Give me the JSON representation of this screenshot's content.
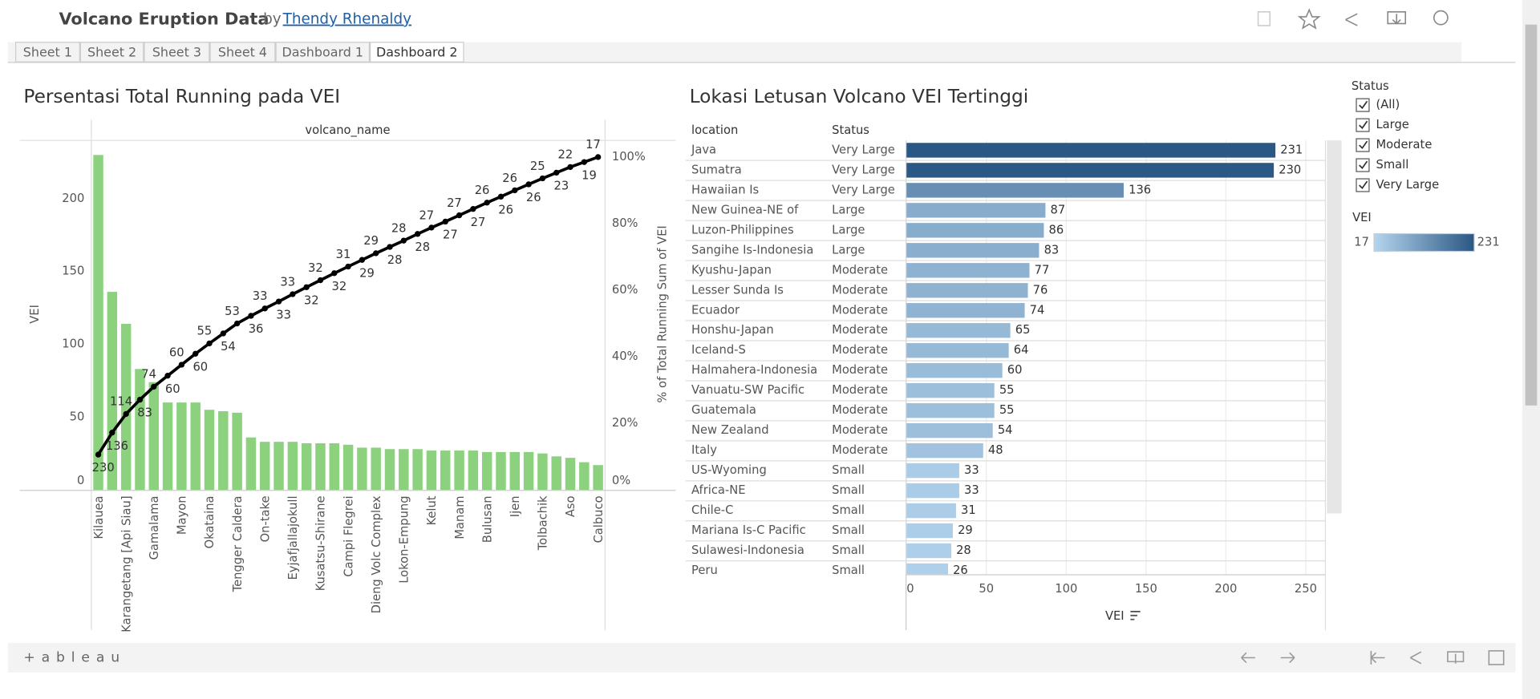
{
  "header": {
    "title": "Volcano Eruption Data",
    "by": "by",
    "author": "Thendy Rhenaldy"
  },
  "tabs": [
    "Sheet 1",
    "Sheet 2",
    "Sheet 3",
    "Sheet 4",
    "Dashboard 1",
    "Dashboard 2"
  ],
  "filter": {
    "title": "Status",
    "options": [
      "(All)",
      "Large",
      "Moderate",
      "Small",
      "Very Large"
    ]
  },
  "footer": {
    "logo": "+ a b l e a u"
  },
  "chart_data": [
    {
      "type": "pareto",
      "title": "Persentasi Total Running pada VEI",
      "column_header": "volcano_name",
      "y_label": "VEI",
      "y2_label": "% of Total Running Sum of VEI",
      "categories": [
        "Kilauea",
        null,
        "Karangetang [Api Siau]",
        null,
        "Gamalama",
        null,
        "Mayon",
        null,
        "Okataina",
        null,
        "Tengger Caldera",
        null,
        "On-take",
        null,
        "Eyjafjallajokull",
        null,
        "Kusatsu-Shirane",
        null,
        "Campi Flegrei",
        null,
        "Dieng Volc Complex",
        null,
        "Lokon-Empung",
        null,
        "Kelut",
        null,
        "Manam",
        null,
        "Bulusan",
        null,
        "Ijen",
        null,
        "Tolbachik",
        null,
        "Aso",
        null,
        "Calbuco"
      ],
      "series": [
        {
          "type": "bar",
          "color": "#8cd17d",
          "values": [
            230,
            136,
            114,
            83,
            74,
            60,
            60,
            60,
            55,
            54,
            53,
            36,
            33,
            33,
            33,
            32,
            32,
            32,
            31,
            29,
            29,
            28,
            28,
            28,
            27,
            27,
            27,
            27,
            26,
            26,
            26,
            26,
            25,
            23,
            22,
            19,
            17
          ]
        },
        {
          "type": "line",
          "axis": "y2",
          "color": "#000000",
          "values": [
            10.6,
            17.2,
            22.8,
            27.1,
            31.0,
            34.3,
            37.6,
            40.9,
            44.0,
            47.0,
            50.0,
            52.3,
            54.5,
            56.6,
            58.8,
            60.9,
            63.0,
            65.1,
            67.1,
            69.1,
            71.1,
            73.0,
            74.9,
            76.9,
            78.8,
            80.6,
            82.5,
            84.4,
            86.3,
            88.1,
            90.0,
            91.8,
            93.6,
            95.3,
            97.0,
            98.5,
            100
          ]
        }
      ],
      "ylim": [
        0,
        240
      ],
      "yticks": [
        0,
        50,
        100,
        150,
        200
      ],
      "y2lim": [
        0,
        105
      ],
      "y2ticks": [
        {
          "value": 0,
          "label": "0%"
        },
        {
          "value": 20,
          "label": "20%"
        },
        {
          "value": 40,
          "label": "40%"
        },
        {
          "value": 60,
          "label": "60%"
        },
        {
          "value": 80,
          "label": "80%"
        },
        {
          "value": 100,
          "label": "100%"
        }
      ],
      "grid": false
    },
    {
      "type": "hbar",
      "title": "Lokasi Letusan Volcano VEI Tertinggi",
      "columns": [
        "location",
        "Status"
      ],
      "categories": [
        "Java",
        "Sumatra",
        "Hawaiian Is",
        "New Guinea-NE of",
        "Luzon-Philippines",
        "Sangihe Is-Indonesia",
        "Kyushu-Japan",
        "Lesser Sunda Is",
        "Ecuador",
        "Honshu-Japan",
        "Iceland-S",
        "Halmahera-Indonesia",
        "Vanuatu-SW Pacific",
        "Guatemala",
        "New Zealand",
        "Italy",
        "US-Wyoming",
        "Africa-NE",
        "Chile-C",
        "Mariana Is-C Pacific",
        "Sulawesi-Indonesia",
        "Peru"
      ],
      "status": [
        "Very Large",
        "Very Large",
        "Very Large",
        "Large",
        "Large",
        "Large",
        "Moderate",
        "Moderate",
        "Moderate",
        "Moderate",
        "Moderate",
        "Moderate",
        "Moderate",
        "Moderate",
        "Moderate",
        "Moderate",
        "Small",
        "Small",
        "Small",
        "Small",
        "Small",
        "Small"
      ],
      "values": [
        231,
        230,
        136,
        87,
        86,
        83,
        77,
        76,
        74,
        65,
        64,
        60,
        55,
        55,
        54,
        48,
        33,
        33,
        31,
        29,
        28,
        26
      ],
      "x_label": "VEI",
      "xlim": [
        0,
        262
      ],
      "xticks": [
        0,
        50,
        100,
        150,
        200,
        250
      ],
      "grid": true,
      "color_scale": {
        "title": "VEI",
        "min": 17,
        "max": 231,
        "colors": [
          "#b5d5ee",
          "#2a5783"
        ]
      }
    }
  ]
}
